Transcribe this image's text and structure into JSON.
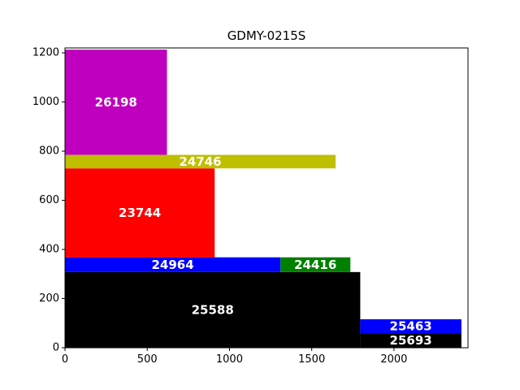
{
  "chart_data": {
    "type": "packing",
    "title": "GDMY-0215S",
    "xlabel": "",
    "ylabel": "",
    "xlim": [
      0,
      2450
    ],
    "ylim": [
      0,
      1220
    ],
    "x_ticks": [
      0,
      500,
      1000,
      1500,
      2000
    ],
    "y_ticks": [
      0,
      200,
      400,
      600,
      800,
      1000,
      1200
    ],
    "grid": false,
    "rectangles": [
      {
        "label": "25588",
        "x": 0,
        "y": 0,
        "width": 1795,
        "height": 308,
        "color": "#000000"
      },
      {
        "label": "25693",
        "x": 1795,
        "y": 0,
        "width": 615,
        "height": 58,
        "color": "#000000"
      },
      {
        "label": "25463",
        "x": 1795,
        "y": 58,
        "width": 615,
        "height": 58,
        "color": "#0000ff"
      },
      {
        "label": "24964",
        "x": 0,
        "y": 308,
        "width": 1310,
        "height": 60,
        "color": "#0000ff"
      },
      {
        "label": "24416",
        "x": 1310,
        "y": 308,
        "width": 425,
        "height": 60,
        "color": "#008000"
      },
      {
        "label": "23744",
        "x": 0,
        "y": 368,
        "width": 910,
        "height": 362,
        "color": "#ff0000"
      },
      {
        "label": "24746",
        "x": 0,
        "y": 730,
        "width": 1645,
        "height": 55,
        "color": "#bfbf00"
      },
      {
        "label": "26198",
        "x": 0,
        "y": 785,
        "width": 620,
        "height": 428,
        "color": "#bf00bf"
      }
    ]
  }
}
